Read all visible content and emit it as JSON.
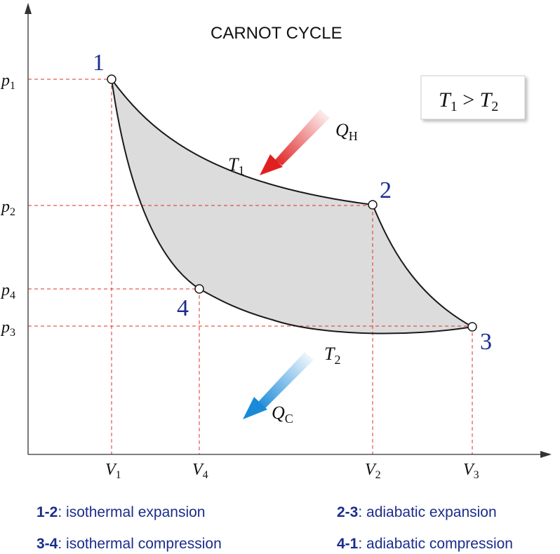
{
  "title": "CARNOT CYCLE",
  "condition": {
    "left": "T",
    "left_sub": "1",
    "op": " > ",
    "right": "T",
    "right_sub": "2"
  },
  "points": [
    {
      "label": "1",
      "name": "point-1"
    },
    {
      "label": "2",
      "name": "point-2"
    },
    {
      "label": "3",
      "name": "point-3"
    },
    {
      "label": "4",
      "name": "point-4"
    }
  ],
  "axes": {
    "pressure_ticks": [
      {
        "sym": "p",
        "sub": "1"
      },
      {
        "sym": "p",
        "sub": "2"
      },
      {
        "sym": "p",
        "sub": "4"
      },
      {
        "sym": "p",
        "sub": "3"
      }
    ],
    "volume_ticks": [
      {
        "sym": "V",
        "sub": "1"
      },
      {
        "sym": "V",
        "sub": "4"
      },
      {
        "sym": "V",
        "sub": "2"
      },
      {
        "sym": "V",
        "sub": "3"
      }
    ]
  },
  "temperatures": {
    "hot": {
      "sym": "T",
      "sub": "1"
    },
    "cold": {
      "sym": "T",
      "sub": "2"
    }
  },
  "heat": {
    "in": {
      "sym": "Q",
      "sub": "H"
    },
    "out": {
      "sym": "Q",
      "sub": "C"
    }
  },
  "legend": [
    {
      "code": "1-2",
      "text": ": isothermal expansion"
    },
    {
      "code": "2-3",
      "text": ": adiabatic expansion"
    },
    {
      "code": "3-4",
      "text": ": isothermal compression"
    },
    {
      "code": "4-1",
      "text": ": adiabatic compression"
    }
  ],
  "colors": {
    "curve": "#1a1a1a",
    "area": "#dcdcdc",
    "guide": "#e03020",
    "label": "#1a2d8c",
    "hot_arrow": "#e02020",
    "cold_arrow": "#1a8ad8"
  }
}
